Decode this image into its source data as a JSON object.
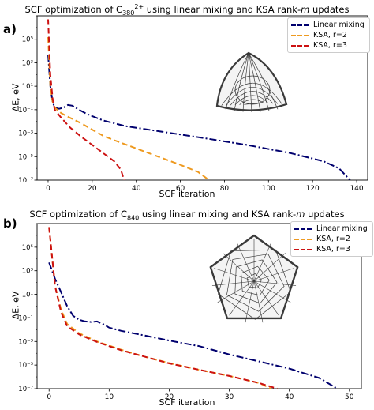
{
  "panels": [
    {
      "letter": "a)",
      "title_prefix": "SCF optimization of C",
      "title_sub": "380",
      "title_sup": "2+",
      "title_suffix": " using linear mixing and KSA rank-",
      "title_m": "m",
      "title_end": " updates",
      "xlabel": "SCF iteration",
      "ylabel": "ΔE, eV",
      "legend": [
        "Linear mixing",
        "KSA, r=2",
        "KSA, r=3"
      ],
      "molecule_icon": "fullerene-cage-icon"
    },
    {
      "letter": "b)",
      "title_prefix": "SCF optimization of C",
      "title_sub": "840",
      "title_sup": "",
      "title_suffix": " using linear mixing and KSA rank-",
      "title_m": "m",
      "title_end": " updates",
      "xlabel": "SCF iteration",
      "ylabel": "ΔE, eV",
      "legend": [
        "Linear mixing",
        "KSA, r=2",
        "KSA, r=3"
      ],
      "molecule_icon": "fullerene-cage-icon"
    }
  ],
  "colors": {
    "linear": "#00006e",
    "r2": "#ee9a20",
    "r3": "#cc1111"
  },
  "chart_data": [
    {
      "type": "line",
      "xlabel": "SCF iteration",
      "ylabel": "ΔE, eV",
      "yscale": "log",
      "xlim": [
        -5,
        145
      ],
      "ylim": [
        1e-07,
        10000000.0
      ],
      "xticks": [
        0,
        20,
        40,
        60,
        80,
        100,
        120,
        140
      ],
      "yticks": [
        1e-07,
        1e-05,
        0.001,
        0.1,
        10.0,
        1000.0,
        100000.0
      ],
      "ytick_labels": [
        "10⁻⁷",
        "10⁻⁵",
        "10⁻³",
        "10⁻¹",
        "10¹",
        "10³",
        "10⁵"
      ],
      "grid": false,
      "legend_position": "top-right",
      "series": [
        {
          "name": "Linear mixing",
          "points": [
            [
              0,
              5000
            ],
            [
              1,
              10
            ],
            [
              2,
              0.5
            ],
            [
              3,
              0.15
            ],
            [
              5,
              0.12
            ],
            [
              7,
              0.15
            ],
            [
              9,
              0.25
            ],
            [
              11,
              0.22
            ],
            [
              14,
              0.1
            ],
            [
              18,
              0.04
            ],
            [
              25,
              0.012
            ],
            [
              35,
              0.004
            ],
            [
              50,
              0.0015
            ],
            [
              70,
              0.0004
            ],
            [
              90,
              0.0001
            ],
            [
              110,
              2e-05
            ],
            [
              125,
              4e-06
            ],
            [
              132,
              1e-06
            ],
            [
              137,
              1e-07
            ]
          ]
        },
        {
          "name": "KSA, r=2",
          "points": [
            [
              0,
              150000
            ],
            [
              1,
              10
            ],
            [
              2,
              0.5
            ],
            [
              3,
              0.15
            ],
            [
              6,
              0.05
            ],
            [
              10,
              0.02
            ],
            [
              15,
              0.007
            ],
            [
              20,
              0.002
            ],
            [
              25,
              0.0006
            ],
            [
              30,
              0.00025
            ],
            [
              40,
              5e-05
            ],
            [
              50,
              1e-05
            ],
            [
              60,
              2e-06
            ],
            [
              68,
              5e-07
            ],
            [
              73,
              1e-07
            ]
          ]
        },
        {
          "name": "KSA, r=3",
          "points": [
            [
              0,
              5000000
            ],
            [
              1,
              100
            ],
            [
              2,
              1
            ],
            [
              3,
              0.1
            ],
            [
              6,
              0.02
            ],
            [
              10,
              0.003
            ],
            [
              15,
              0.0005
            ],
            [
              20,
              0.0001
            ],
            [
              25,
              2e-05
            ],
            [
              30,
              4e-06
            ],
            [
              33,
              8e-07
            ],
            [
              34.5,
              1e-07
            ]
          ]
        }
      ]
    },
    {
      "type": "line",
      "xlabel": "SCF iteration",
      "ylabel": "ΔE, eV",
      "yscale": "log",
      "xlim": [
        -2,
        52
      ],
      "ylim": [
        1e-07,
        10000000.0
      ],
      "xticks": [
        0,
        10,
        20,
        30,
        40,
        50
      ],
      "yticks": [
        1e-07,
        1e-05,
        0.001,
        0.1,
        10.0,
        1000.0,
        100000.0
      ],
      "ytick_labels": [
        "10⁻⁷",
        "10⁻⁵",
        "10⁻³",
        "10⁻¹",
        "10¹",
        "10³",
        "10⁵"
      ],
      "grid": false,
      "legend_position": "top-right",
      "series": [
        {
          "name": "Linear mixing",
          "points": [
            [
              0,
              5000
            ],
            [
              1,
              200
            ],
            [
              2,
              15
            ],
            [
              3,
              1
            ],
            [
              4,
              0.15
            ],
            [
              5,
              0.07
            ],
            [
              6,
              0.05
            ],
            [
              7,
              0.045
            ],
            [
              8,
              0.05
            ],
            [
              9,
              0.03
            ],
            [
              10,
              0.015
            ],
            [
              12,
              0.008
            ],
            [
              15,
              0.004
            ],
            [
              20,
              0.0012
            ],
            [
              25,
              0.0004
            ],
            [
              30,
              8e-05
            ],
            [
              35,
              2e-05
            ],
            [
              40,
              5e-06
            ],
            [
              45,
              8e-07
            ],
            [
              48,
              1e-07
            ]
          ]
        },
        {
          "name": "KSA, r=2",
          "points": [
            [
              0,
              5000000
            ],
            [
              1,
              50
            ],
            [
              2,
              0.5
            ],
            [
              3,
              0.03
            ],
            [
              5,
              0.005
            ],
            [
              8,
              0.001
            ],
            [
              12,
              0.0002
            ],
            [
              16,
              5e-05
            ],
            [
              20,
              1.5e-05
            ],
            [
              25,
              4e-06
            ],
            [
              30,
              1.2e-06
            ],
            [
              35,
              3e-07
            ],
            [
              37,
              1e-07
            ]
          ]
        },
        {
          "name": "KSA, r=3",
          "points": [
            [
              0,
              5000000
            ],
            [
              1,
              50
            ],
            [
              2,
              0.3
            ],
            [
              3,
              0.02
            ],
            [
              5,
              0.004
            ],
            [
              8,
              0.0009
            ],
            [
              12,
              0.00018
            ],
            [
              16,
              5e-05
            ],
            [
              20,
              1.4e-05
            ],
            [
              25,
              4e-06
            ],
            [
              30,
              1.2e-06
            ],
            [
              35,
              3e-07
            ],
            [
              38,
              1e-07
            ]
          ]
        }
      ]
    }
  ]
}
